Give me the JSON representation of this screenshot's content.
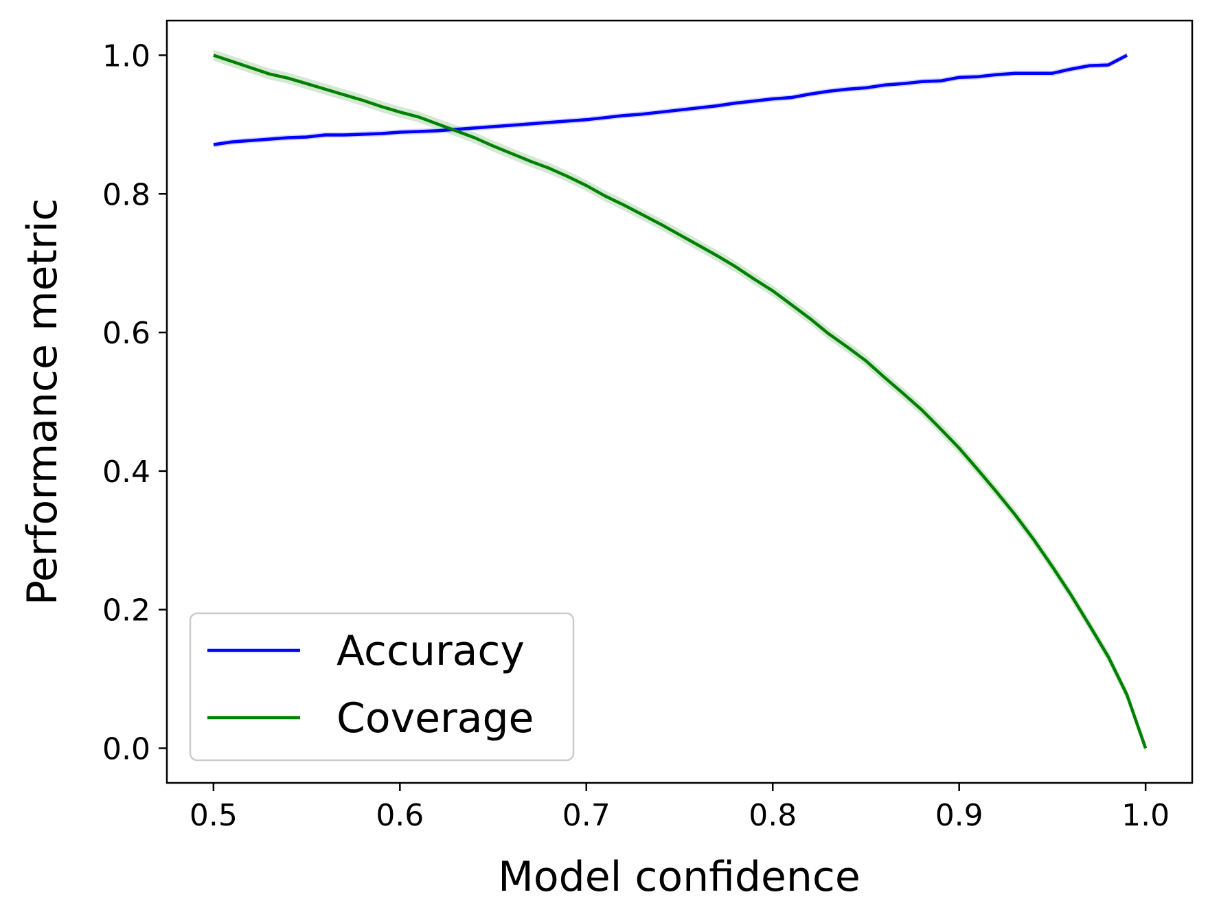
{
  "chart_data": {
    "type": "line",
    "title": "",
    "xlabel": "Model confidence",
    "ylabel": "Performance metric",
    "xlim": [
      0.475,
      1.025
    ],
    "ylim": [
      -0.05,
      1.05
    ],
    "x_ticks": [
      "0.5",
      "0.6",
      "0.7",
      "0.8",
      "0.9",
      "1.0"
    ],
    "y_ticks": [
      "0.0",
      "0.2",
      "0.4",
      "0.6",
      "0.8",
      "1.0"
    ],
    "grid": false,
    "legend_position": "lower-left",
    "series": [
      {
        "name": "Accuracy",
        "color": "#0000ff",
        "band_color": "#8080ff",
        "x": [
          0.5,
          0.51,
          0.52,
          0.53,
          0.54,
          0.55,
          0.56,
          0.57,
          0.58,
          0.59,
          0.6,
          0.61,
          0.62,
          0.63,
          0.64,
          0.65,
          0.66,
          0.67,
          0.68,
          0.69,
          0.7,
          0.71,
          0.72,
          0.73,
          0.74,
          0.75,
          0.76,
          0.77,
          0.78,
          0.79,
          0.8,
          0.81,
          0.82,
          0.83,
          0.84,
          0.85,
          0.86,
          0.87,
          0.88,
          0.89,
          0.9,
          0.91,
          0.92,
          0.93,
          0.94,
          0.95,
          0.96,
          0.97,
          0.98,
          0.99
        ],
        "y": [
          0.871,
          0.875,
          0.877,
          0.879,
          0.881,
          0.882,
          0.885,
          0.885,
          0.886,
          0.887,
          0.889,
          0.89,
          0.891,
          0.893,
          0.895,
          0.897,
          0.899,
          0.901,
          0.903,
          0.905,
          0.907,
          0.91,
          0.913,
          0.915,
          0.918,
          0.921,
          0.924,
          0.927,
          0.931,
          0.934,
          0.937,
          0.939,
          0.944,
          0.948,
          0.951,
          0.953,
          0.957,
          0.959,
          0.962,
          0.963,
          0.968,
          0.969,
          0.972,
          0.974,
          0.974,
          0.974,
          0.98,
          0.985,
          0.986,
          1.0
        ]
      },
      {
        "name": "Coverage",
        "color": "#008000",
        "band_color": "#80c080",
        "x": [
          0.5,
          0.51,
          0.52,
          0.53,
          0.54,
          0.55,
          0.56,
          0.57,
          0.58,
          0.59,
          0.6,
          0.61,
          0.62,
          0.63,
          0.64,
          0.65,
          0.66,
          0.67,
          0.68,
          0.69,
          0.7,
          0.71,
          0.72,
          0.73,
          0.74,
          0.75,
          0.76,
          0.77,
          0.78,
          0.79,
          0.8,
          0.81,
          0.82,
          0.83,
          0.84,
          0.85,
          0.86,
          0.87,
          0.88,
          0.89,
          0.9,
          0.91,
          0.92,
          0.93,
          0.94,
          0.95,
          0.96,
          0.97,
          0.98,
          0.99,
          1.0
        ],
        "y": [
          1.0,
          0.991,
          0.982,
          0.973,
          0.967,
          0.959,
          0.951,
          0.943,
          0.935,
          0.926,
          0.918,
          0.911,
          0.901,
          0.891,
          0.881,
          0.869,
          0.858,
          0.847,
          0.837,
          0.825,
          0.812,
          0.797,
          0.784,
          0.77,
          0.756,
          0.741,
          0.726,
          0.711,
          0.695,
          0.677,
          0.66,
          0.64,
          0.62,
          0.598,
          0.579,
          0.559,
          0.535,
          0.512,
          0.488,
          0.461,
          0.433,
          0.402,
          0.37,
          0.337,
          0.301,
          0.262,
          0.221,
          0.177,
          0.132,
          0.077,
          0.0
        ]
      }
    ]
  }
}
